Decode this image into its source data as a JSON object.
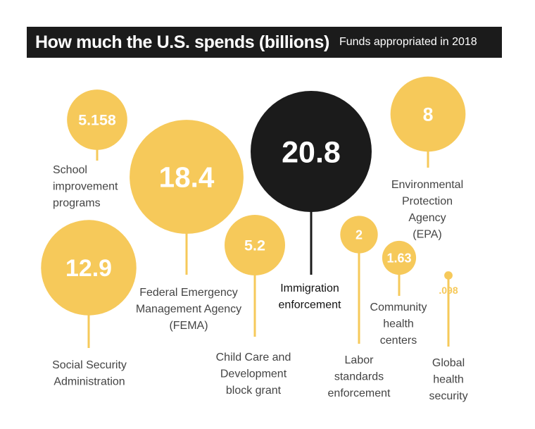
{
  "header": {
    "title": "How much the U.S. spends (billions)",
    "subtitle": "Funds appropriated in 2018"
  },
  "colors": {
    "accent": "#f6c95a",
    "highlight": "#1b1b1b",
    "label_text": "#444444",
    "highlight_label_text": "#111111"
  },
  "chart_data": {
    "type": "bubble",
    "title": "How much the U.S. spends (billions)",
    "subtitle": "Funds appropriated in 2018",
    "unit": "billions",
    "items": [
      {
        "label": "School improvement programs",
        "value": 5.158,
        "value_text": "5.158",
        "highlight": false
      },
      {
        "label": "Federal Emergency Management Agency (FEMA)",
        "value": 18.4,
        "value_text": "18.4",
        "highlight": false
      },
      {
        "label": "Immigration enforcement",
        "value": 20.8,
        "value_text": "20.8",
        "highlight": true
      },
      {
        "label": "Environmental Protection Agency (EPA)",
        "value": 8,
        "value_text": "8",
        "highlight": false
      },
      {
        "label": "Social Security Administration",
        "value": 12.9,
        "value_text": "12.9",
        "highlight": false
      },
      {
        "label": "Child Care and Development block grant",
        "value": 5.2,
        "value_text": "5.2",
        "highlight": false
      },
      {
        "label": "Labor standards enforcement",
        "value": 2,
        "value_text": "2",
        "highlight": false
      },
      {
        "label": "Community health centers",
        "value": 1.63,
        "value_text": "1.63",
        "highlight": false
      },
      {
        "label": "Global health security",
        "value": 0.098,
        "value_text": ".098",
        "highlight": false
      }
    ]
  }
}
